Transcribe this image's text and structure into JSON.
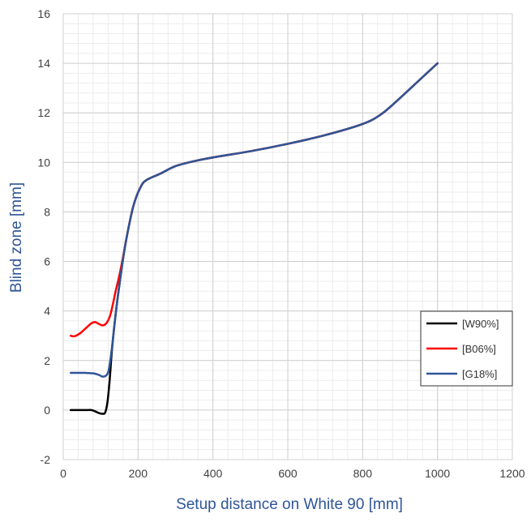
{
  "chart_data": {
    "type": "line",
    "title": "",
    "xlabel": "Setup distance on White 90 [mm]",
    "ylabel": "Blind zone [mm]",
    "xlim": [
      0,
      1200
    ],
    "ylim": [
      -2,
      16
    ],
    "x_ticks": [
      0,
      200,
      400,
      600,
      800,
      1000,
      1200
    ],
    "x_tick_labels": [
      "0",
      "200",
      "400",
      "600",
      "800",
      "1000",
      "1200"
    ],
    "y_ticks": [
      -2,
      0,
      2,
      4,
      6,
      8,
      10,
      12,
      14,
      16
    ],
    "y_tick_labels": [
      "-2",
      "0",
      "2",
      "4",
      "6",
      "8",
      "10",
      "12",
      "14",
      "16"
    ],
    "grid": true,
    "minor_grid": true,
    "legend_position": "right",
    "series": [
      {
        "name": "[W90%]",
        "color": "#000000",
        "points": [
          [
            20,
            0
          ],
          [
            40,
            0
          ],
          [
            60,
            0
          ],
          [
            75,
            0
          ],
          [
            85,
            -0.05
          ],
          [
            95,
            -0.12
          ],
          [
            105,
            -0.15
          ],
          [
            112,
            -0.1
          ],
          [
            118,
            0.3
          ],
          [
            124,
            1.2
          ],
          [
            130,
            2.4
          ],
          [
            138,
            3.6
          ],
          [
            146,
            4.6
          ],
          [
            155,
            5.6
          ],
          [
            165,
            6.6
          ],
          [
            175,
            7.4
          ],
          [
            185,
            8.1
          ],
          [
            195,
            8.6
          ],
          [
            205,
            8.95
          ],
          [
            215,
            9.2
          ],
          [
            230,
            9.35
          ],
          [
            260,
            9.55
          ],
          [
            300,
            9.85
          ],
          [
            350,
            10.05
          ],
          [
            400,
            10.2
          ],
          [
            500,
            10.45
          ],
          [
            600,
            10.75
          ],
          [
            700,
            11.1
          ],
          [
            800,
            11.55
          ],
          [
            850,
            11.95
          ],
          [
            900,
            12.6
          ],
          [
            950,
            13.3
          ],
          [
            1000,
            14
          ]
        ]
      },
      {
        "name": "[B06%]",
        "color": "#ff0000",
        "points": [
          [
            20,
            3
          ],
          [
            30,
            2.98
          ],
          [
            45,
            3.1
          ],
          [
            60,
            3.3
          ],
          [
            75,
            3.5
          ],
          [
            85,
            3.55
          ],
          [
            95,
            3.48
          ],
          [
            105,
            3.42
          ],
          [
            115,
            3.5
          ],
          [
            125,
            3.8
          ],
          [
            133,
            4.3
          ],
          [
            140,
            4.8
          ],
          [
            148,
            5.3
          ],
          [
            155,
            5.8
          ],
          [
            165,
            6.6
          ],
          [
            175,
            7.4
          ],
          [
            185,
            8.1
          ],
          [
            195,
            8.6
          ],
          [
            205,
            8.95
          ],
          [
            215,
            9.2
          ],
          [
            230,
            9.35
          ],
          [
            260,
            9.55
          ],
          [
            300,
            9.85
          ],
          [
            350,
            10.05
          ],
          [
            400,
            10.2
          ],
          [
            500,
            10.45
          ],
          [
            600,
            10.75
          ],
          [
            700,
            11.1
          ],
          [
            800,
            11.55
          ],
          [
            850,
            11.95
          ],
          [
            900,
            12.6
          ],
          [
            950,
            13.3
          ],
          [
            1000,
            14
          ]
        ]
      },
      {
        "name": "[G18%]",
        "color": "#2f5597",
        "points": [
          [
            20,
            1.5
          ],
          [
            40,
            1.5
          ],
          [
            60,
            1.5
          ],
          [
            80,
            1.48
          ],
          [
            95,
            1.42
          ],
          [
            105,
            1.35
          ],
          [
            115,
            1.4
          ],
          [
            122,
            1.65
          ],
          [
            130,
            2.5
          ],
          [
            138,
            3.6
          ],
          [
            146,
            4.6
          ],
          [
            155,
            5.6
          ],
          [
            165,
            6.6
          ],
          [
            175,
            7.4
          ],
          [
            185,
            8.1
          ],
          [
            195,
            8.6
          ],
          [
            205,
            8.95
          ],
          [
            215,
            9.2
          ],
          [
            230,
            9.35
          ],
          [
            260,
            9.55
          ],
          [
            300,
            9.85
          ],
          [
            350,
            10.05
          ],
          [
            400,
            10.2
          ],
          [
            500,
            10.45
          ],
          [
            600,
            10.75
          ],
          [
            700,
            11.1
          ],
          [
            800,
            11.55
          ],
          [
            850,
            11.95
          ],
          [
            900,
            12.6
          ],
          [
            950,
            13.3
          ],
          [
            1000,
            14
          ]
        ]
      }
    ]
  }
}
